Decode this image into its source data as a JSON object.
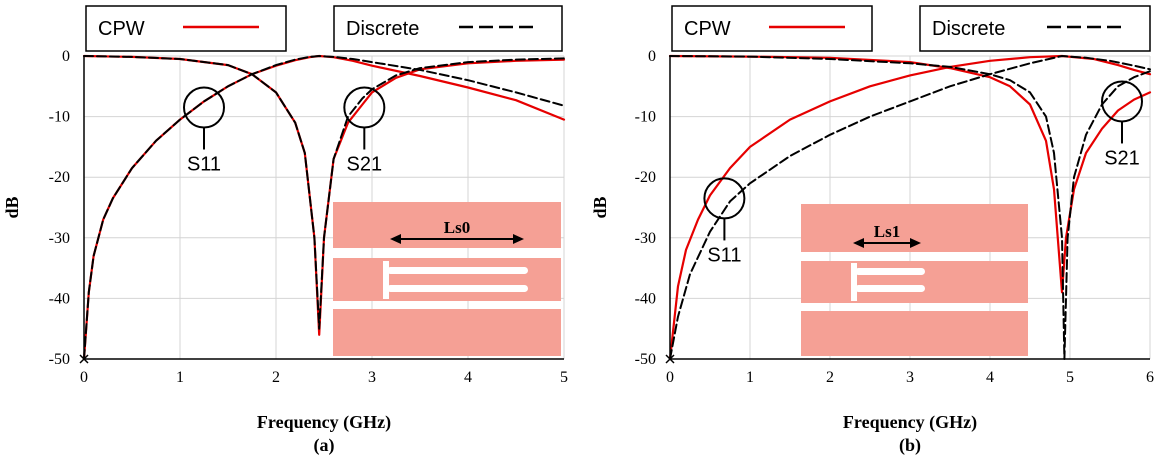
{
  "chart_data": [
    {
      "type": "line",
      "caption": "(a)",
      "xlabel": "Frequency (GHz)",
      "ylabel": "dB",
      "xlim": [
        0,
        5
      ],
      "ylim": [
        -50,
        0
      ],
      "x_ticks": [
        0,
        1,
        2,
        3,
        4,
        5
      ],
      "y_ticks": [
        0,
        -10,
        -20,
        -30,
        -40,
        -50
      ],
      "grid": true,
      "legend": [
        {
          "label": "CPW",
          "color": "#e60000",
          "style": "solid"
        },
        {
          "label": "Discrete",
          "color": "#000000",
          "style": "dashed"
        }
      ],
      "annotations": [
        {
          "text": "S11",
          "x": 1.25,
          "y": -8.5
        },
        {
          "text": "S21",
          "x": 2.92,
          "y": -8.5
        }
      ],
      "inset_label": "Ls0",
      "series": [
        {
          "name": "CPW S11",
          "color": "#e60000",
          "style": "solid",
          "points": [
            [
              0,
              -50
            ],
            [
              0.05,
              -39
            ],
            [
              0.1,
              -33
            ],
            [
              0.2,
              -27
            ],
            [
              0.3,
              -23.5
            ],
            [
              0.5,
              -18.5
            ],
            [
              0.75,
              -14
            ],
            [
              1.0,
              -10.5
            ],
            [
              1.25,
              -7.5
            ],
            [
              1.5,
              -5
            ],
            [
              1.75,
              -3
            ],
            [
              2.0,
              -1.6
            ],
            [
              2.2,
              -0.7
            ],
            [
              2.35,
              -0.2
            ],
            [
              2.45,
              0
            ],
            [
              2.6,
              -0.2
            ],
            [
              2.8,
              -0.8
            ],
            [
              3.0,
              -1.6
            ],
            [
              3.5,
              -3.3
            ],
            [
              4.0,
              -5.2
            ],
            [
              4.5,
              -7.3
            ],
            [
              5.0,
              -10.5
            ]
          ]
        },
        {
          "name": "CPW S21",
          "color": "#e60000",
          "style": "solid",
          "points": [
            [
              0,
              0
            ],
            [
              0.5,
              -0.15
            ],
            [
              1.0,
              -0.5
            ],
            [
              1.5,
              -1.5
            ],
            [
              1.75,
              -3
            ],
            [
              2.0,
              -6
            ],
            [
              2.2,
              -11
            ],
            [
              2.3,
              -16
            ],
            [
              2.4,
              -30
            ],
            [
              2.45,
              -46
            ],
            [
              2.5,
              -30
            ],
            [
              2.6,
              -17
            ],
            [
              2.75,
              -11
            ],
            [
              2.9,
              -8
            ],
            [
              3.0,
              -6
            ],
            [
              3.25,
              -3.6
            ],
            [
              3.5,
              -2.2
            ],
            [
              4.0,
              -1.2
            ],
            [
              4.5,
              -0.8
            ],
            [
              5.0,
              -0.6
            ]
          ]
        },
        {
          "name": "Discrete S11",
          "color": "#000000",
          "style": "dashed",
          "points": [
            [
              0,
              -50
            ],
            [
              0.05,
              -39
            ],
            [
              0.1,
              -33
            ],
            [
              0.2,
              -27
            ],
            [
              0.3,
              -23.5
            ],
            [
              0.5,
              -18.5
            ],
            [
              0.75,
              -14
            ],
            [
              1.0,
              -10.5
            ],
            [
              1.25,
              -7.5
            ],
            [
              1.5,
              -5
            ],
            [
              1.75,
              -3
            ],
            [
              2.0,
              -1.5
            ],
            [
              2.2,
              -0.6
            ],
            [
              2.35,
              -0.15
            ],
            [
              2.45,
              0
            ],
            [
              2.6,
              -0.15
            ],
            [
              2.8,
              -0.5
            ],
            [
              3.0,
              -1
            ],
            [
              3.5,
              -2.3
            ],
            [
              4.0,
              -4
            ],
            [
              4.5,
              -6
            ],
            [
              5.0,
              -8.2
            ]
          ]
        },
        {
          "name": "Discrete S21",
          "color": "#000000",
          "style": "dashed",
          "points": [
            [
              0,
              0
            ],
            [
              0.5,
              -0.15
            ],
            [
              1.0,
              -0.5
            ],
            [
              1.5,
              -1.5
            ],
            [
              1.75,
              -3
            ],
            [
              2.0,
              -6
            ],
            [
              2.2,
              -11
            ],
            [
              2.3,
              -16
            ],
            [
              2.4,
              -30
            ],
            [
              2.45,
              -45
            ],
            [
              2.5,
              -30
            ],
            [
              2.6,
              -17
            ],
            [
              2.75,
              -10
            ],
            [
              2.9,
              -7
            ],
            [
              3.0,
              -5.5
            ],
            [
              3.25,
              -3.2
            ],
            [
              3.5,
              -2
            ],
            [
              4.0,
              -1
            ],
            [
              4.5,
              -0.6
            ],
            [
              5.0,
              -0.4
            ]
          ]
        }
      ]
    },
    {
      "type": "line",
      "caption": "(b)",
      "xlabel": "Frequency (GHz)",
      "ylabel": "dB",
      "xlim": [
        0,
        6
      ],
      "ylim": [
        -50,
        0
      ],
      "x_ticks": [
        0,
        1,
        2,
        3,
        4,
        5,
        6
      ],
      "y_ticks": [
        0,
        -10,
        -20,
        -30,
        -40,
        -50
      ],
      "grid": true,
      "legend": [
        {
          "label": "CPW",
          "color": "#e60000",
          "style": "solid"
        },
        {
          "label": "Discrete",
          "color": "#000000",
          "style": "dashed"
        }
      ],
      "annotations": [
        {
          "text": "S11",
          "x": 0.68,
          "y": -23.5
        },
        {
          "text": "S21",
          "x": 5.65,
          "y": -7.5
        }
      ],
      "inset_label": "Ls1",
      "series": [
        {
          "name": "CPW S11",
          "color": "#e60000",
          "style": "solid",
          "points": [
            [
              0,
              -50
            ],
            [
              0.1,
              -38
            ],
            [
              0.2,
              -32
            ],
            [
              0.35,
              -27
            ],
            [
              0.5,
              -23
            ],
            [
              0.75,
              -18.5
            ],
            [
              1.0,
              -15
            ],
            [
              1.5,
              -10.5
            ],
            [
              2.0,
              -7.5
            ],
            [
              2.5,
              -5
            ],
            [
              3.0,
              -3.2
            ],
            [
              3.5,
              -1.8
            ],
            [
              4.0,
              -0.8
            ],
            [
              4.5,
              -0.2
            ],
            [
              4.9,
              0
            ],
            [
              5.3,
              -0.5
            ],
            [
              5.6,
              -1.5
            ],
            [
              5.8,
              -2.3
            ],
            [
              6.0,
              -3
            ]
          ]
        },
        {
          "name": "CPW S21",
          "color": "#e60000",
          "style": "solid",
          "points": [
            [
              0,
              0
            ],
            [
              1.0,
              -0.1
            ],
            [
              2.0,
              -0.3
            ],
            [
              3.0,
              -1
            ],
            [
              3.5,
              -2
            ],
            [
              4.0,
              -3.5
            ],
            [
              4.25,
              -5
            ],
            [
              4.5,
              -8
            ],
            [
              4.7,
              -14
            ],
            [
              4.8,
              -22
            ],
            [
              4.9,
              -39
            ],
            [
              4.95,
              -30
            ],
            [
              5.05,
              -22
            ],
            [
              5.2,
              -16
            ],
            [
              5.4,
              -12
            ],
            [
              5.6,
              -9
            ],
            [
              5.8,
              -7.2
            ],
            [
              6.0,
              -6
            ]
          ]
        },
        {
          "name": "Discrete S11",
          "color": "#000000",
          "style": "dashed",
          "points": [
            [
              0,
              -50
            ],
            [
              0.1,
              -43
            ],
            [
              0.25,
              -36
            ],
            [
              0.5,
              -29
            ],
            [
              0.75,
              -24
            ],
            [
              1.0,
              -21
            ],
            [
              1.5,
              -16.5
            ],
            [
              2.0,
              -13
            ],
            [
              2.5,
              -10
            ],
            [
              3.0,
              -7.5
            ],
            [
              3.5,
              -5
            ],
            [
              4.0,
              -3
            ],
            [
              4.5,
              -1.2
            ],
            [
              4.9,
              0
            ],
            [
              5.2,
              -0.3
            ],
            [
              5.5,
              -0.8
            ],
            [
              5.8,
              -1.6
            ],
            [
              6.0,
              -2.2
            ]
          ]
        },
        {
          "name": "Discrete S21",
          "color": "#000000",
          "style": "dashed",
          "points": [
            [
              0,
              0
            ],
            [
              1.0,
              -0.1
            ],
            [
              2.0,
              -0.5
            ],
            [
              3.0,
              -1.2
            ],
            [
              3.5,
              -1.8
            ],
            [
              4.0,
              -3
            ],
            [
              4.25,
              -4
            ],
            [
              4.5,
              -6
            ],
            [
              4.7,
              -10
            ],
            [
              4.8,
              -16
            ],
            [
              4.9,
              -30
            ],
            [
              4.93,
              -50
            ],
            [
              4.97,
              -30
            ],
            [
              5.05,
              -20
            ],
            [
              5.2,
              -13
            ],
            [
              5.4,
              -8
            ],
            [
              5.6,
              -5
            ],
            [
              5.8,
              -3.5
            ],
            [
              6.0,
              -2.5
            ]
          ]
        }
      ]
    }
  ]
}
